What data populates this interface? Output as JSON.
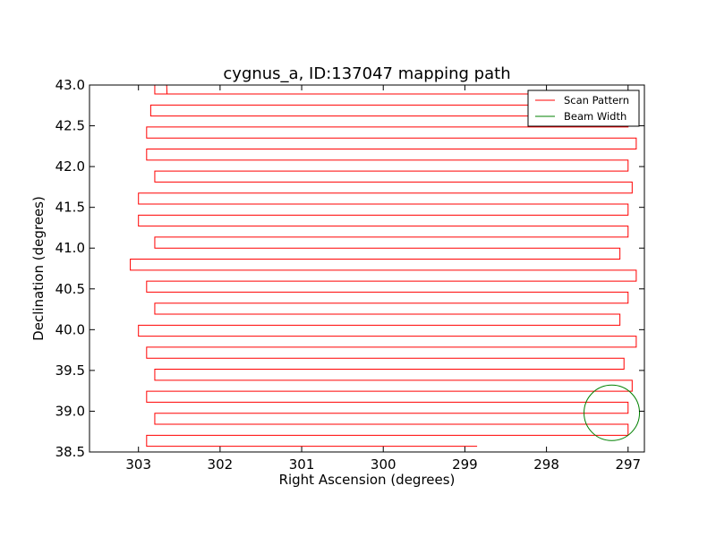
{
  "chart_data": {
    "type": "line",
    "title": "cygnus_a, ID:137047 mapping path",
    "xlabel": "Right Ascension (degrees)",
    "ylabel": "Declination (degrees)",
    "xlim": [
      303.6,
      296.8
    ],
    "ylim": [
      38.5,
      43.0
    ],
    "x_inverted": true,
    "x_ticks": [
      303,
      302,
      301,
      300,
      299,
      298,
      297
    ],
    "y_ticks": [
      38.5,
      39.0,
      39.5,
      40.0,
      40.5,
      41.0,
      41.5,
      42.0,
      42.5,
      43.0
    ],
    "x_tick_labels": [
      "303",
      "302",
      "301",
      "300",
      "299",
      "298",
      "297"
    ],
    "y_tick_labels": [
      "38.5",
      "39.0",
      "39.5",
      "40.0",
      "40.5",
      "41.0",
      "41.5",
      "42.0",
      "42.5",
      "43.0"
    ],
    "grid": false,
    "legend": {
      "position": "top-right",
      "entries": [
        {
          "name": "Scan Pattern",
          "color": "#ff0000"
        },
        {
          "name": "Beam Width",
          "color": "#008000"
        }
      ]
    },
    "series": [
      {
        "name": "Scan Pattern",
        "color": "#ff0000",
        "start": [
          298.85,
          38.57
        ],
        "end": [
          302.65,
          42.89
        ],
        "row_spacing": 0.135,
        "turn_ra_left": [
          302.9,
          302.8,
          302.9,
          302.8,
          302.9,
          303.0,
          302.8,
          302.9,
          303.1,
          302.8,
          303.0,
          303.0,
          302.8,
          302.9,
          302.9,
          302.85,
          302.8,
          302.9,
          303.0,
          302.8,
          303.0,
          302.9,
          302.8,
          302.9,
          303.05,
          302.8,
          302.9,
          302.8,
          302.9,
          302.8,
          302.8
        ],
        "turn_ra_right": [
          297.0,
          297.0,
          296.95,
          297.05,
          296.9,
          297.1,
          297.0,
          296.9,
          297.1,
          297.0,
          297.0,
          296.95,
          297.0,
          296.9,
          297.0,
          297.05,
          296.9,
          297.0,
          296.95,
          297.0,
          297.0,
          296.9,
          297.0,
          296.95,
          296.9,
          297.0,
          297.05,
          296.9,
          297.0,
          297.1
        ]
      }
    ],
    "beam": {
      "name": "Beam Width",
      "color": "#008000",
      "center": [
        297.2,
        38.98
      ],
      "radius_deg": 0.34
    }
  }
}
